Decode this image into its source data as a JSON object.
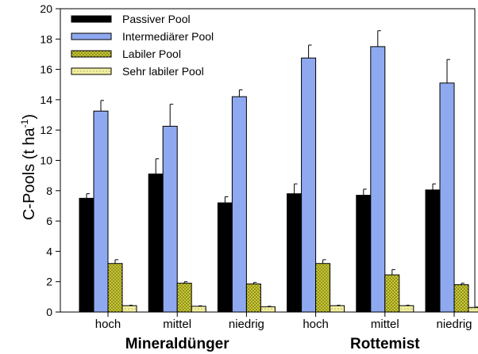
{
  "chart_data": {
    "type": "bar",
    "ylabel_main": "C-Pools (t ha",
    "ylabel_sup": "-1",
    "ylabel_close": ")",
    "ylim": [
      0,
      20
    ],
    "yticks": [
      0,
      2,
      4,
      6,
      8,
      10,
      12,
      14,
      16,
      18,
      20
    ],
    "categories": [
      "hoch",
      "mittel",
      "niedrig",
      "hoch",
      "mittel",
      "niedrig"
    ],
    "groups": [
      {
        "label": "Mineraldünger",
        "category_span": [
          0,
          2
        ]
      },
      {
        "label": "Rottemist",
        "category_span": [
          3,
          5
        ]
      }
    ],
    "series": [
      {
        "name": "Passiver Pool",
        "color": "#000000",
        "pattern": "solid",
        "values": [
          7.5,
          9.1,
          7.2,
          7.8,
          7.7,
          8.05
        ],
        "errors": [
          0.3,
          1.0,
          0.4,
          0.65,
          0.4,
          0.4
        ]
      },
      {
        "name": "Intermediärer Pool",
        "color": "#8ea9ef",
        "pattern": "solid",
        "values": [
          13.25,
          12.25,
          14.2,
          16.75,
          17.5,
          15.1
        ],
        "errors": [
          0.7,
          1.45,
          0.45,
          0.85,
          1.05,
          1.55
        ]
      },
      {
        "name": "Labiler Pool",
        "color": "#c8c832",
        "pattern": "dense-dots",
        "values": [
          3.2,
          1.9,
          1.85,
          3.2,
          2.45,
          1.8
        ],
        "errors": [
          0.25,
          0.1,
          0.1,
          0.25,
          0.35,
          0.1
        ]
      },
      {
        "name": "Sehr labiler Pool",
        "color": "#f2f0a0",
        "pattern": "sparse-dots",
        "values": [
          0.42,
          0.38,
          0.35,
          0.42,
          0.42,
          0.3
        ],
        "errors": [
          0.03,
          0.03,
          0.03,
          0.03,
          0.03,
          0.03
        ]
      }
    ],
    "legend_position": "top-left",
    "grid": false
  }
}
